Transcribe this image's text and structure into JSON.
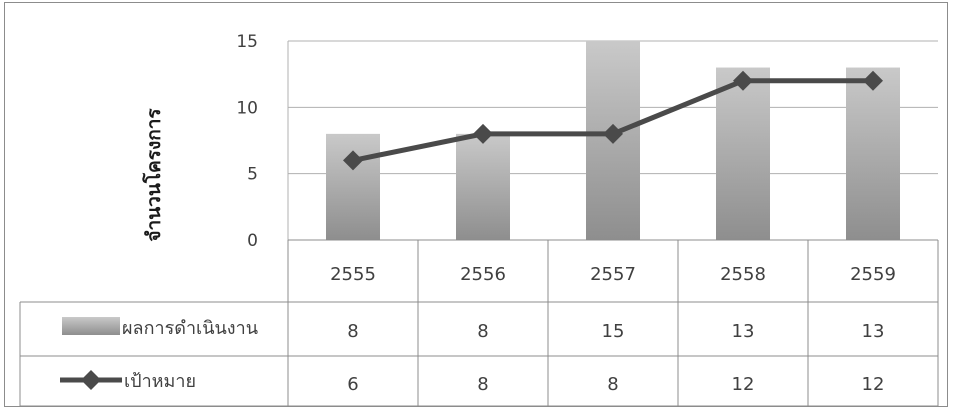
{
  "chart_data": {
    "type": "bar+line",
    "ylabel": "จำนวนโครงการ",
    "ylim": [
      0,
      15
    ],
    "yticks": [
      "0",
      "5",
      "10",
      "15"
    ],
    "categories": [
      "2555",
      "2556",
      "2557",
      "2558",
      "2559"
    ],
    "grid": true,
    "legend_placement": "data-table-left",
    "series": [
      {
        "name": "ผลการดำเนินงาน",
        "type": "bar",
        "values": [
          8,
          8,
          15,
          13,
          13
        ],
        "color": "#9a9a9a"
      },
      {
        "name": "เป้าหมาย",
        "type": "line",
        "marker": "diamond",
        "values": [
          6,
          8,
          8,
          12,
          12
        ],
        "color": "#4a4a4a"
      }
    ]
  },
  "table": {
    "rows": [
      {
        "label": "ผลการดำเนินงาน",
        "values": [
          "8",
          "8",
          "15",
          "13",
          "13"
        ]
      },
      {
        "label": "เป้าหมาย",
        "values": [
          "6",
          "8",
          "8",
          "12",
          "12"
        ]
      }
    ]
  }
}
